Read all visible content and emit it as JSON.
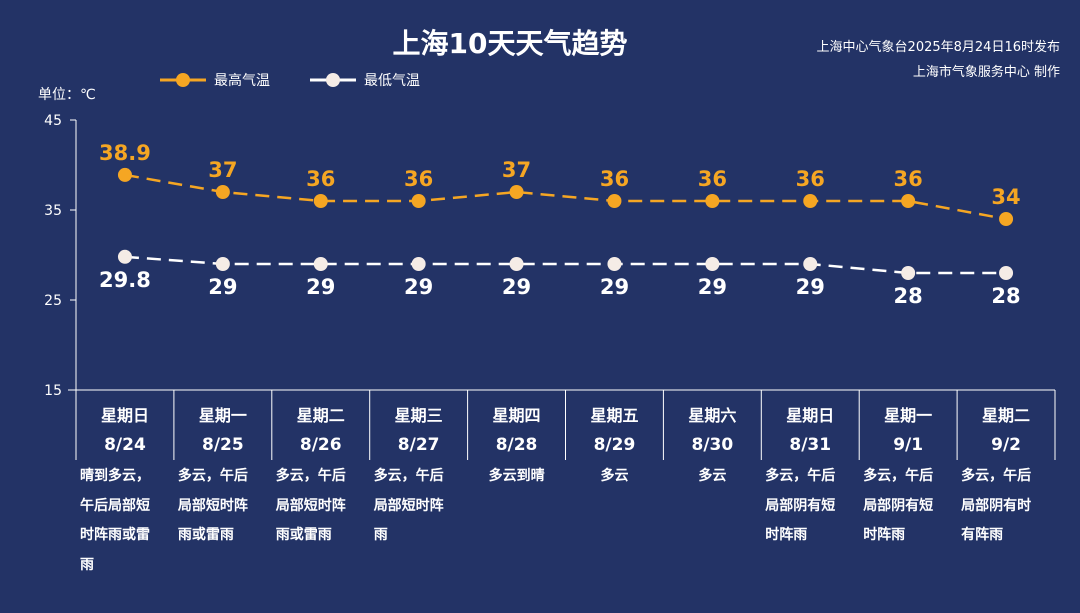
{
  "title": "上海10天天气趋势",
  "source_line1": "上海中心气象台2025年8月24日16时发布",
  "source_line2": "上海市气象服务中心 制作",
  "unit_label": "单位：℃",
  "colors": {
    "background": "#233366",
    "high": "#f5a623",
    "low": "#ffffff"
  },
  "chart_data": {
    "type": "line",
    "categories": [
      "8/24",
      "8/25",
      "8/26",
      "8/27",
      "8/28",
      "8/29",
      "8/30",
      "8/31",
      "9/1",
      "9/2"
    ],
    "weekdays": [
      "星期日",
      "星期一",
      "星期二",
      "星期三",
      "星期四",
      "星期五",
      "星期六",
      "星期日",
      "星期一",
      "星期二"
    ],
    "weather": [
      "晴到多云，午后局部短时阵雨或雷雨",
      "多云，午后局部短时阵雨或雷雨",
      "多云，午后局部短时阵雨或雷雨",
      "多云，午后局部短时阵雨",
      "多云到晴",
      "多云",
      "多云",
      "多云，午后局部阴有短时阵雨",
      "多云，午后局部阴有短时阵雨",
      "多云，午后局部阴有时有阵雨"
    ],
    "series": [
      {
        "name": "最高气温",
        "values": [
          38.9,
          37,
          36,
          36,
          37,
          36,
          36,
          36,
          36,
          34
        ],
        "labels": [
          "38.9",
          "37",
          "36",
          "36",
          "37",
          "36",
          "36",
          "36",
          "36",
          "34"
        ]
      },
      {
        "name": "最低气温",
        "values": [
          29.8,
          29,
          29,
          29,
          29,
          29,
          29,
          29,
          28,
          28
        ],
        "labels": [
          "29.8",
          "29",
          "29",
          "29",
          "29",
          "29",
          "29",
          "29",
          "28",
          "28"
        ]
      }
    ],
    "yticks": [
      "15",
      "25",
      "35",
      "45"
    ],
    "ylim": [
      15,
      45
    ],
    "grid": false,
    "legend": "top"
  }
}
